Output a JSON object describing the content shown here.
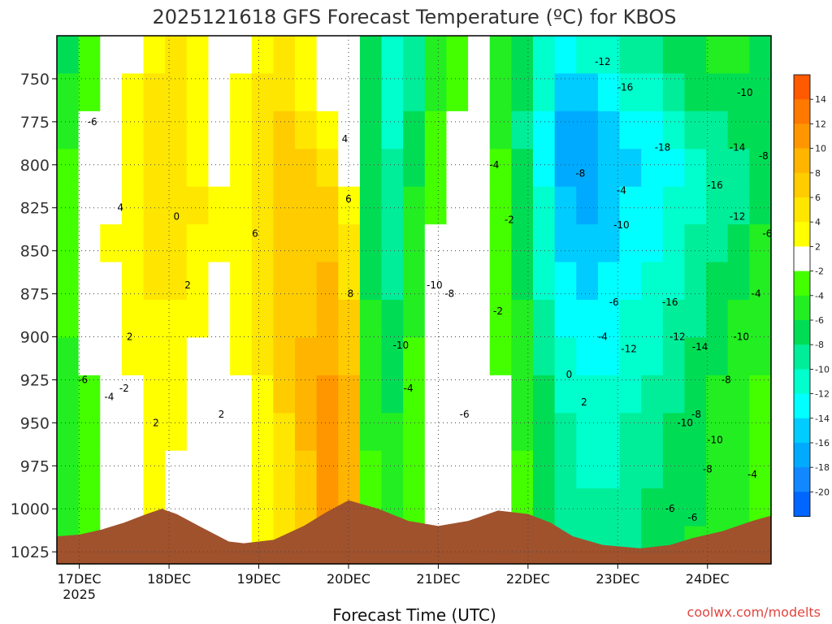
{
  "title": "2025121618 GFS Forecast Temperature (ºC) for KBOS",
  "credit": "coolwx.com/modelts",
  "chart_data": {
    "type": "heatmap",
    "title": "2025121618 GFS Forecast Temperature (ºC) for KBOS",
    "xlabel": "Forecast Time (UTC)",
    "ylabel": "",
    "x_ticks": [
      "17DEC",
      "18DEC",
      "19DEC",
      "20DEC",
      "21DEC",
      "22DEC",
      "23DEC",
      "24DEC"
    ],
    "x_tick_sub": "2025",
    "y_ticks": [
      750,
      775,
      800,
      825,
      850,
      875,
      900,
      925,
      950,
      975,
      1000,
      1025
    ],
    "y_range_hpa": [
      725,
      1032
    ],
    "x_range_hours": [
      -6,
      185
    ],
    "grid": true,
    "legend": "right colorbar",
    "colorbar": {
      "labels": [
        "14",
        "12",
        "10",
        "8",
        "6",
        "4",
        "2",
        "-2",
        "-4",
        "-6",
        "-8",
        "-10",
        "-12",
        "-14",
        "-16",
        "-18",
        "-20"
      ],
      "colors": [
        "#ff5a00",
        "#ff7800",
        "#ff9600",
        "#ffb400",
        "#ffcc00",
        "#ffe600",
        "#ffff00",
        "#ffffff",
        "#44ff00",
        "#22ee22",
        "#00dd55",
        "#00ee99",
        "#00ffcc",
        "#00ffff",
        "#00ccff",
        "#00aaff",
        "#1188ff",
        "#0066ff"
      ]
    },
    "series": [
      {
        "values": [
          [
            -7,
            -4,
            -2,
            1,
            3,
            4,
            2,
            0,
            1,
            3,
            4,
            2,
            0,
            -2,
            -7,
            -11,
            -9,
            -5,
            -3,
            -2,
            -5,
            -8,
            -11,
            -13,
            -12,
            -11,
            -10,
            -9,
            -8,
            -7,
            -6,
            -6,
            -7
          ],
          [
            -6,
            -3,
            -1,
            2,
            4,
            5,
            3,
            1,
            2,
            4,
            5,
            3,
            1,
            -2,
            -7,
            -11,
            -9,
            -5,
            -3,
            -2,
            -5,
            -8,
            -12,
            -15,
            -15,
            -13,
            -12,
            -11,
            -10,
            -8,
            -7,
            -7,
            -7
          ],
          [
            -5,
            -2,
            0,
            2,
            4,
            5,
            3,
            1,
            2,
            5,
            6,
            5,
            3,
            -1,
            -8,
            -11,
            -8,
            -4,
            -2,
            -2,
            -5,
            -9,
            -13,
            -17,
            -18,
            -16,
            -14,
            -13,
            -12,
            -10,
            -9,
            -8,
            -8
          ],
          [
            -4,
            -1,
            1,
            3,
            4,
            5,
            3,
            1,
            3,
            5,
            6,
            6,
            5,
            1,
            -8,
            -10,
            -7,
            -4,
            -2,
            -1,
            -4,
            -8,
            -13,
            -17,
            -18,
            -16,
            -15,
            -14,
            -13,
            -11,
            -10,
            -9,
            -8
          ],
          [
            -3,
            0,
            1,
            3,
            5,
            5,
            4,
            2,
            3,
            5,
            6,
            7,
            6,
            2,
            -7,
            -9,
            -6,
            -3,
            -1,
            -1,
            -4,
            -8,
            -12,
            -16,
            -17,
            -16,
            -14,
            -14,
            -12,
            -11,
            -10,
            -9,
            -7
          ],
          [
            -3,
            0,
            2,
            3,
            5,
            5,
            3,
            2,
            3,
            5,
            6,
            7,
            7,
            4,
            -7,
            -9,
            -5,
            -2,
            0,
            0,
            -3,
            -7,
            -11,
            -15,
            -16,
            -15,
            -14,
            -13,
            -12,
            -10,
            -9,
            -8,
            -6
          ],
          [
            -4,
            -1,
            1,
            3,
            4,
            4,
            3,
            1,
            3,
            5,
            6,
            7,
            8,
            5,
            -7,
            -9,
            -5,
            -2,
            0,
            0,
            -3,
            -7,
            -11,
            -14,
            -15,
            -14,
            -13,
            -12,
            -11,
            -9,
            -8,
            -7,
            -6
          ],
          [
            -4,
            -2,
            0,
            2,
            3,
            3,
            2,
            0,
            2,
            4,
            6,
            7,
            9,
            6,
            -6,
            -8,
            -5,
            -2,
            0,
            0,
            -3,
            -6,
            -10,
            -13,
            -14,
            -14,
            -12,
            -11,
            -10,
            -9,
            -7,
            -6,
            -5
          ],
          [
            -5,
            -2,
            0,
            2,
            3,
            2,
            1,
            -1,
            2,
            4,
            6,
            8,
            9,
            7,
            -6,
            -8,
            -4,
            -2,
            0,
            0,
            -3,
            -6,
            -9,
            -12,
            -13,
            -13,
            -12,
            -11,
            -10,
            -8,
            -7,
            -6,
            -5
          ],
          [
            -5,
            -3,
            -1,
            1,
            2,
            2,
            1,
            -1,
            1,
            3,
            6,
            8,
            10,
            8,
            -5,
            -7,
            -4,
            -2,
            0,
            1,
            -2,
            -5,
            -8,
            -11,
            -12,
            -12,
            -11,
            -10,
            -9,
            -8,
            -6,
            -5,
            -4
          ],
          [
            -6,
            -3,
            -1,
            1,
            2,
            2,
            0,
            -1,
            1,
            3,
            5,
            8,
            10,
            8,
            -5,
            -6,
            -4,
            -1,
            0,
            1,
            -2,
            -5,
            -8,
            -10,
            -11,
            -11,
            -10,
            -9,
            -8,
            -7,
            -6,
            -5,
            -4
          ],
          [
            -6,
            -4,
            -2,
            0,
            2,
            1,
            0,
            -1,
            1,
            3,
            5,
            7,
            10,
            9,
            -4,
            -6,
            -3,
            -1,
            0,
            1,
            -2,
            -4,
            -7,
            -10,
            -11,
            -11,
            -10,
            -9,
            -8,
            -7,
            -6,
            -5,
            -4
          ],
          [
            -5,
            -4,
            -2,
            0,
            2,
            1,
            0,
            -1,
            1,
            2,
            5,
            7,
            10,
            9,
            -4,
            -6,
            -3,
            -1,
            0,
            1,
            -2,
            -4,
            -7,
            -9,
            -10,
            -10,
            -9,
            -8,
            -8,
            -7,
            -6,
            -5,
            -4
          ],
          [
            -5,
            -4,
            -2,
            1,
            2,
            2,
            0,
            -1,
            1,
            2,
            4,
            7,
            10,
            9,
            -4,
            -5,
            -3,
            -1,
            0,
            2,
            -1,
            -4,
            -6,
            -9,
            -10,
            -9,
            -9,
            -8,
            -7,
            -6,
            -5,
            -5,
            -3
          ]
        ]
      }
    ]
  }
}
